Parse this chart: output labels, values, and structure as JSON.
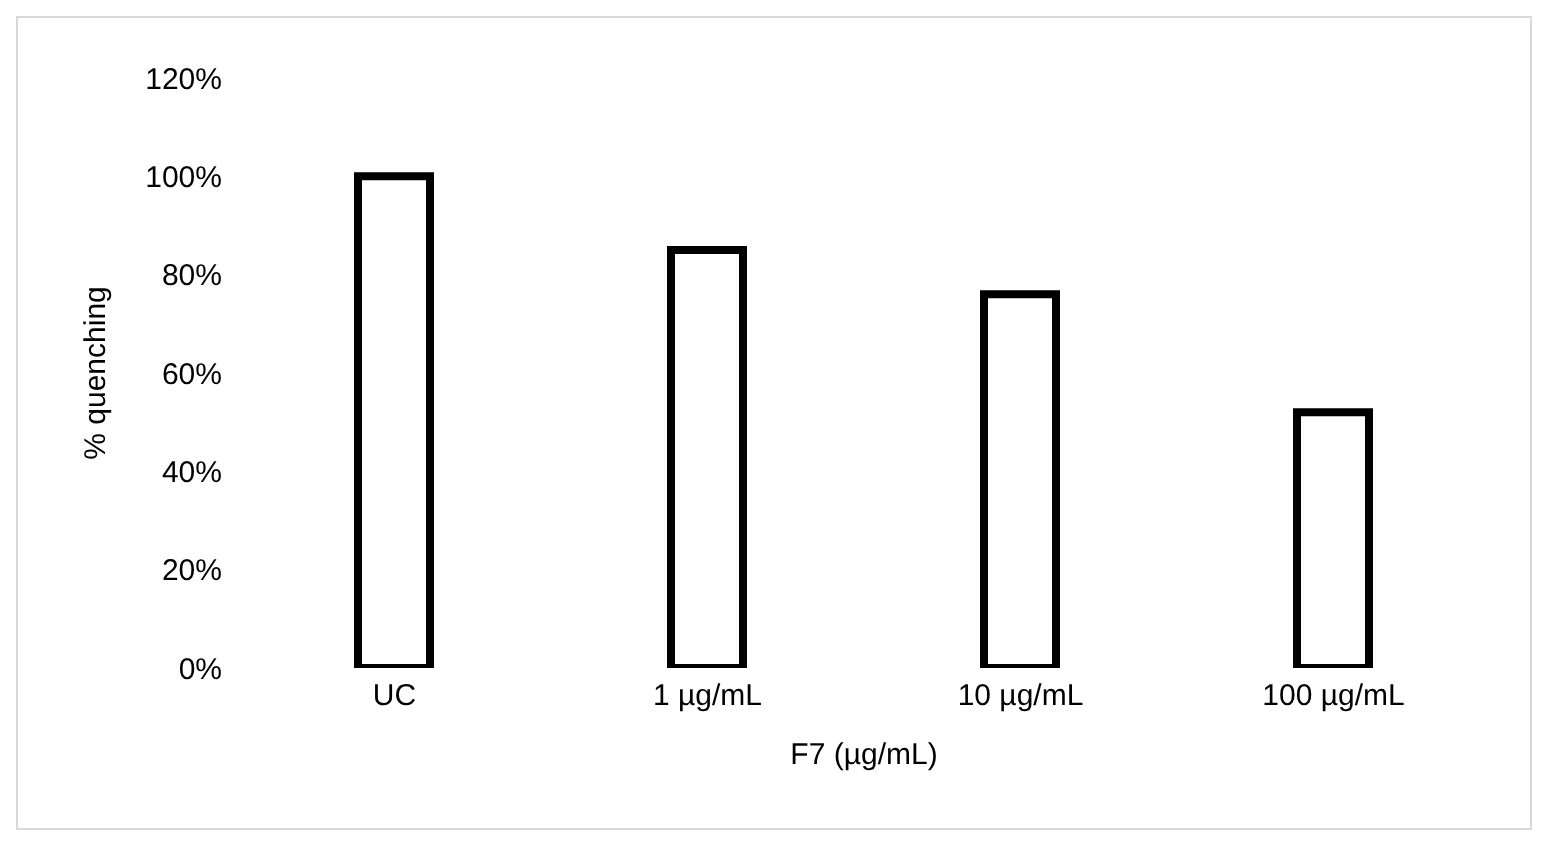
{
  "chart_data": {
    "type": "bar",
    "xlabel": "F7 (µg/mL)",
    "ylabel": "% quenching",
    "categories": [
      "UC",
      "1 µg/mL",
      "10 µg/mL",
      "100 µg/mL"
    ],
    "values": [
      100,
      85,
      76,
      52
    ],
    "color": "#000000",
    "ylim": [
      0,
      120
    ],
    "yticks": [
      {
        "value": 0,
        "label": "0%"
      },
      {
        "value": 20,
        "label": "20%"
      },
      {
        "value": 40,
        "label": "40%"
      },
      {
        "value": 60,
        "label": "60%"
      },
      {
        "value": 80,
        "label": "80%"
      },
      {
        "value": 100,
        "label": "100%"
      },
      {
        "value": 120,
        "label": "120%"
      }
    ],
    "grid": false,
    "legend": false
  }
}
